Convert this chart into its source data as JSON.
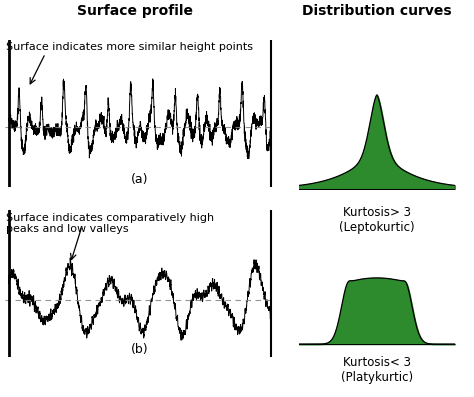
{
  "title_left": "Surface profile",
  "title_right": "Distribution curves",
  "title_fontsize": 10,
  "title_fontweight": "bold",
  "label_a_text": "Surface indicates more similar height points",
  "label_b_text": "Surface indicates comparatively high\npeaks and low valleys",
  "label_fontsize": 8,
  "caption_a": "(a)",
  "caption_b": "(b)",
  "kurtosis_a_text": "Kurtosis> 3\n(Leptokurtic)",
  "kurtosis_b_text": "Kurtosis< 3\n(Platykurtic)",
  "kurtosis_fontsize": 8.5,
  "green_fill": "#2d8a2d",
  "background": "#ffffff",
  "line_color": "#000000",
  "dashed_color": "#888888"
}
